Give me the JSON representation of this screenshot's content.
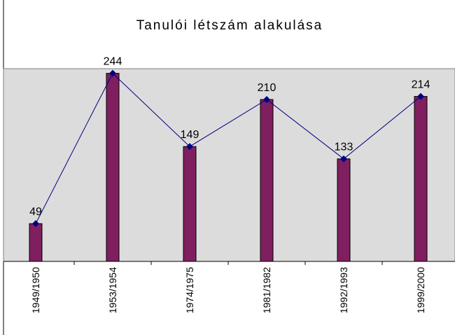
{
  "chart_data": {
    "type": "bar",
    "title": "Tanulói létszám alakulása",
    "categories": [
      "1949/1950",
      "1953/1954",
      "1974/1975",
      "1981/1982",
      "1992/1993",
      "1999/2000"
    ],
    "values": [
      49,
      244,
      149,
      210,
      133,
      214
    ],
    "color": "#7f1f5f",
    "line_overlay": true,
    "line_color": "#000080",
    "ylim": [
      0,
      250
    ],
    "plot_background": "#dcdcdc"
  }
}
